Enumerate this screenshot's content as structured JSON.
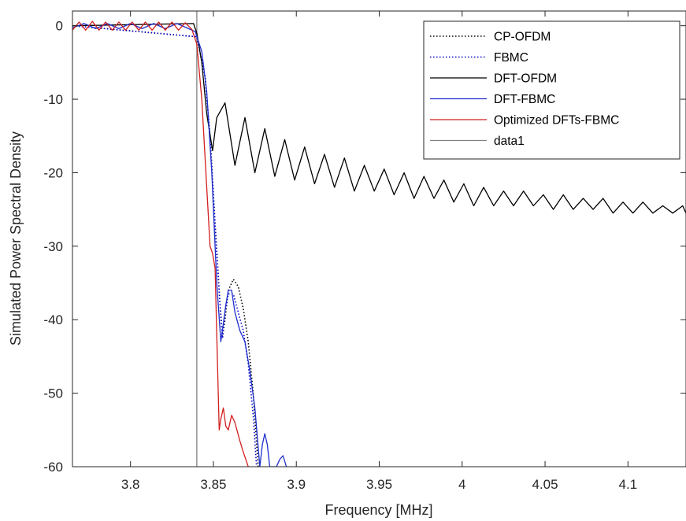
{
  "chart_data": {
    "type": "line",
    "title": "",
    "xlabel": "Frequency [MHz]",
    "ylabel": "Simulated Power Spectral Density",
    "xlim": [
      3.765,
      4.135
    ],
    "ylim": [
      -60,
      2
    ],
    "xticks": [
      3.8,
      3.85,
      3.9,
      3.95,
      4.0,
      4.05,
      4.1
    ],
    "xtick_labels": [
      "3.8",
      "3.85",
      "3.9",
      "3.95",
      "4",
      "4.05",
      "4.1"
    ],
    "yticks": [
      0,
      -10,
      -20,
      -30,
      -40,
      -50,
      -60
    ],
    "ytick_labels": [
      "0",
      "-10",
      "-20",
      "-30",
      "-40",
      "-50",
      "-60"
    ],
    "grid": false,
    "legend_position": "top-right",
    "series": [
      {
        "name": "CP-OFDM",
        "color": "#000000",
        "style": "dotted",
        "x": [
          3.765,
          3.84,
          3.845,
          3.848,
          3.851,
          3.854,
          3.8555,
          3.857,
          3.859,
          3.862,
          3.865,
          3.868,
          3.871,
          3.874,
          3.877
        ],
        "y": [
          0,
          -1.5,
          -7,
          -15,
          -27,
          -38,
          -42.5,
          -40,
          -36,
          -34.5,
          -35.5,
          -38.5,
          -43,
          -50,
          -60
        ]
      },
      {
        "name": "FBMC",
        "color": "#0000cc",
        "style": "dotted",
        "x": [
          3.765,
          3.84,
          3.845,
          3.848,
          3.851,
          3.854,
          3.8555,
          3.857,
          3.859,
          3.862,
          3.865,
          3.868,
          3.871,
          3.874,
          3.876
        ],
        "y": [
          0,
          -1.5,
          -7,
          -15,
          -27,
          -38,
          -42.5,
          -39,
          -36.5,
          -36.5,
          -39,
          -41.5,
          -46,
          -53,
          -60
        ]
      },
      {
        "name": "DFT-OFDM",
        "color": "#000000",
        "style": "solid",
        "x": [
          3.765,
          3.838,
          3.84,
          3.843,
          3.846,
          3.8495,
          3.852,
          3.857,
          3.863,
          3.869,
          3.875,
          3.881,
          3.887,
          3.893,
          3.899,
          3.905,
          3.911,
          3.917,
          3.923,
          3.929,
          3.935,
          3.941,
          3.947,
          3.953,
          3.959,
          3.965,
          3.971,
          3.977,
          3.983,
          3.989,
          3.995,
          4.001,
          4.007,
          4.013,
          4.019,
          4.025,
          4.031,
          4.037,
          4.043,
          4.049,
          4.055,
          4.061,
          4.067,
          4.073,
          4.079,
          4.085,
          4.091,
          4.097,
          4.103,
          4.109,
          4.115,
          4.121,
          4.127,
          4.133,
          4.135
        ],
        "y": [
          0,
          0.3,
          -1,
          -5,
          -12,
          -17,
          -12.5,
          -10.5,
          -19,
          -12.5,
          -20,
          -14,
          -20.5,
          -15.5,
          -21,
          -16.5,
          -21.5,
          -17.5,
          -22,
          -18,
          -22.5,
          -19,
          -22.5,
          -19.5,
          -23,
          -20,
          -23.5,
          -20.5,
          -23.5,
          -21,
          -24,
          -21.5,
          -24.5,
          -22,
          -24.5,
          -22.5,
          -24.5,
          -22.5,
          -24.5,
          -23,
          -25,
          -23,
          -25,
          -23.5,
          -25,
          -23.5,
          -25.5,
          -24,
          -25.5,
          -24,
          -25.5,
          -24.5,
          -25.5,
          -24.5,
          -25.5
        ]
      },
      {
        "name": "DFT-FBMC",
        "color": "#1f2ecc",
        "style": "solid",
        "x": [
          3.765,
          3.772,
          3.779,
          3.786,
          3.793,
          3.8,
          3.807,
          3.814,
          3.821,
          3.828,
          3.835,
          3.839,
          3.843,
          3.846,
          3.849,
          3.852,
          3.8545,
          3.856,
          3.8575,
          3.859,
          3.861,
          3.863,
          3.866,
          3.869,
          3.872,
          3.875,
          3.878,
          3.8795,
          3.881,
          3.8825,
          3.884,
          3.886,
          3.888,
          3.89,
          3.892,
          3.894
        ],
        "y": [
          -0.3,
          0.3,
          -0.4,
          0.3,
          -0.4,
          0.3,
          -0.4,
          0.3,
          -0.4,
          0.3,
          -0.4,
          -0.8,
          -3.5,
          -9,
          -20,
          -35,
          -43,
          -40.5,
          -38,
          -36,
          -36,
          -39,
          -41.5,
          -43,
          -47,
          -52,
          -60,
          -57,
          -55.5,
          -57,
          -60,
          -60,
          -60,
          -59,
          -58.5,
          -60
        ]
      },
      {
        "name": "Optimized DFTs-FBMC",
        "color": "#d21f1f",
        "style": "solid",
        "x": [
          3.765,
          3.769,
          3.773,
          3.777,
          3.781,
          3.785,
          3.789,
          3.793,
          3.797,
          3.801,
          3.805,
          3.809,
          3.813,
          3.817,
          3.821,
          3.825,
          3.829,
          3.833,
          3.837,
          3.84,
          3.843,
          3.846,
          3.848,
          3.8495,
          3.851,
          3.852,
          3.8535,
          3.8545,
          3.856,
          3.8575,
          3.859,
          3.861,
          3.863,
          3.866,
          3.868,
          3.871
        ],
        "y": [
          -0.6,
          0.5,
          -0.6,
          0.6,
          -0.6,
          0.5,
          -0.6,
          0.5,
          -0.6,
          0.5,
          -0.6,
          0.5,
          -0.6,
          0.5,
          -0.6,
          0.5,
          -0.6,
          0.4,
          -0.5,
          -2.5,
          -10,
          -22,
          -30,
          -31,
          -33,
          -42,
          -55,
          -53.5,
          -52,
          -54.5,
          -55,
          -53,
          -54,
          -56.5,
          -58,
          -60
        ]
      },
      {
        "name": "data1",
        "color": "#808080",
        "style": "solid",
        "x": [
          3.84,
          3.84
        ],
        "y": [
          -60,
          2
        ]
      }
    ]
  }
}
